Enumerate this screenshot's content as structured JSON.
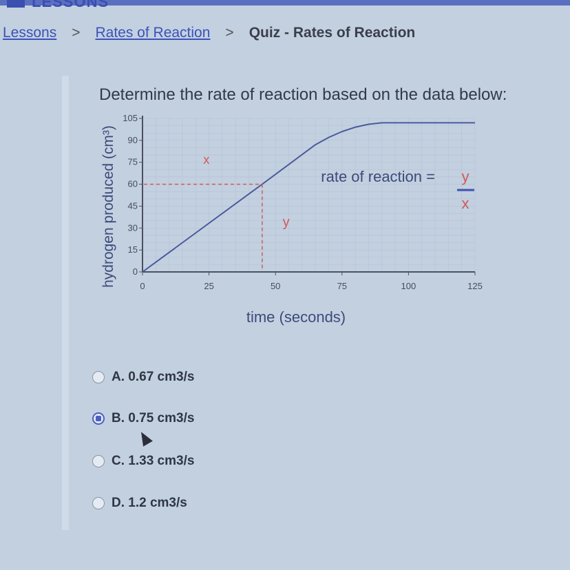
{
  "header": {
    "brand": "LESSONS"
  },
  "breadcrumb": [
    {
      "label": "Lessons"
    },
    {
      "label": "Rates of Reaction"
    },
    {
      "label": "Quiz - Rates of Reaction"
    }
  ],
  "question": "Determine the rate of reaction based on the data below:",
  "chart_data": {
    "type": "line",
    "xlabel": "time (seconds)",
    "ylabel": "hydrogen produced (cm³)",
    "xlim": [
      0,
      125
    ],
    "ylim": [
      0,
      105
    ],
    "xticks": [
      "0",
      "25",
      "50",
      "75",
      "100",
      "125"
    ],
    "yticks": [
      "0",
      "15",
      "30",
      "45",
      "60",
      "75",
      "90",
      "105"
    ],
    "grid": true,
    "series": [
      {
        "x": [
          0,
          45,
          65,
          70,
          75,
          80,
          85,
          90,
          100,
          125
        ],
        "y": [
          0,
          60,
          87,
          92,
          96,
          99,
          101,
          102,
          102,
          102
        ]
      }
    ],
    "annotations": {
      "x_label": "x",
      "y_label": "y",
      "formula_text": "rate of reaction =",
      "formula_num": "y",
      "formula_den": "x",
      "marked_point": [
        45,
        60
      ]
    },
    "colors": {
      "line": "#4a5a9a",
      "annotation": "#d05a5a"
    }
  },
  "options": [
    {
      "label": "A. 0.67 cm3/s",
      "selected": false
    },
    {
      "label": "B. 0.75 cm3/s",
      "selected": true
    },
    {
      "label": "C. 1.33 cm3/s",
      "selected": false
    },
    {
      "label": "D. 1.2 cm3/s",
      "selected": false
    }
  ]
}
